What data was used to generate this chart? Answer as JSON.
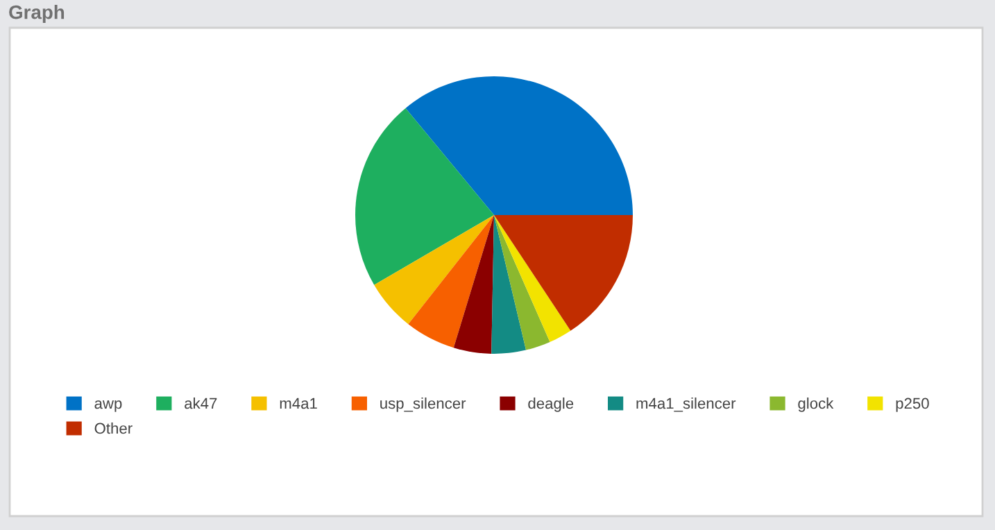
{
  "chart_data": {
    "type": "pie",
    "title": "Graph",
    "categories": [
      "awp",
      "ak47",
      "m4a1",
      "usp_silencer",
      "deagle",
      "m4a1_silencer",
      "glock",
      "p250",
      "Other"
    ],
    "values": [
      36,
      22.4,
      6,
      5.9,
      4.4,
      4,
      2.9,
      2.7,
      15.7
    ],
    "colors": [
      "#0072c6",
      "#1eaf5f",
      "#f5c000",
      "#f76000",
      "#8b0000",
      "#138b84",
      "#8bb82f",
      "#f2e300",
      "#c12d00"
    ],
    "legend": "bottom"
  }
}
